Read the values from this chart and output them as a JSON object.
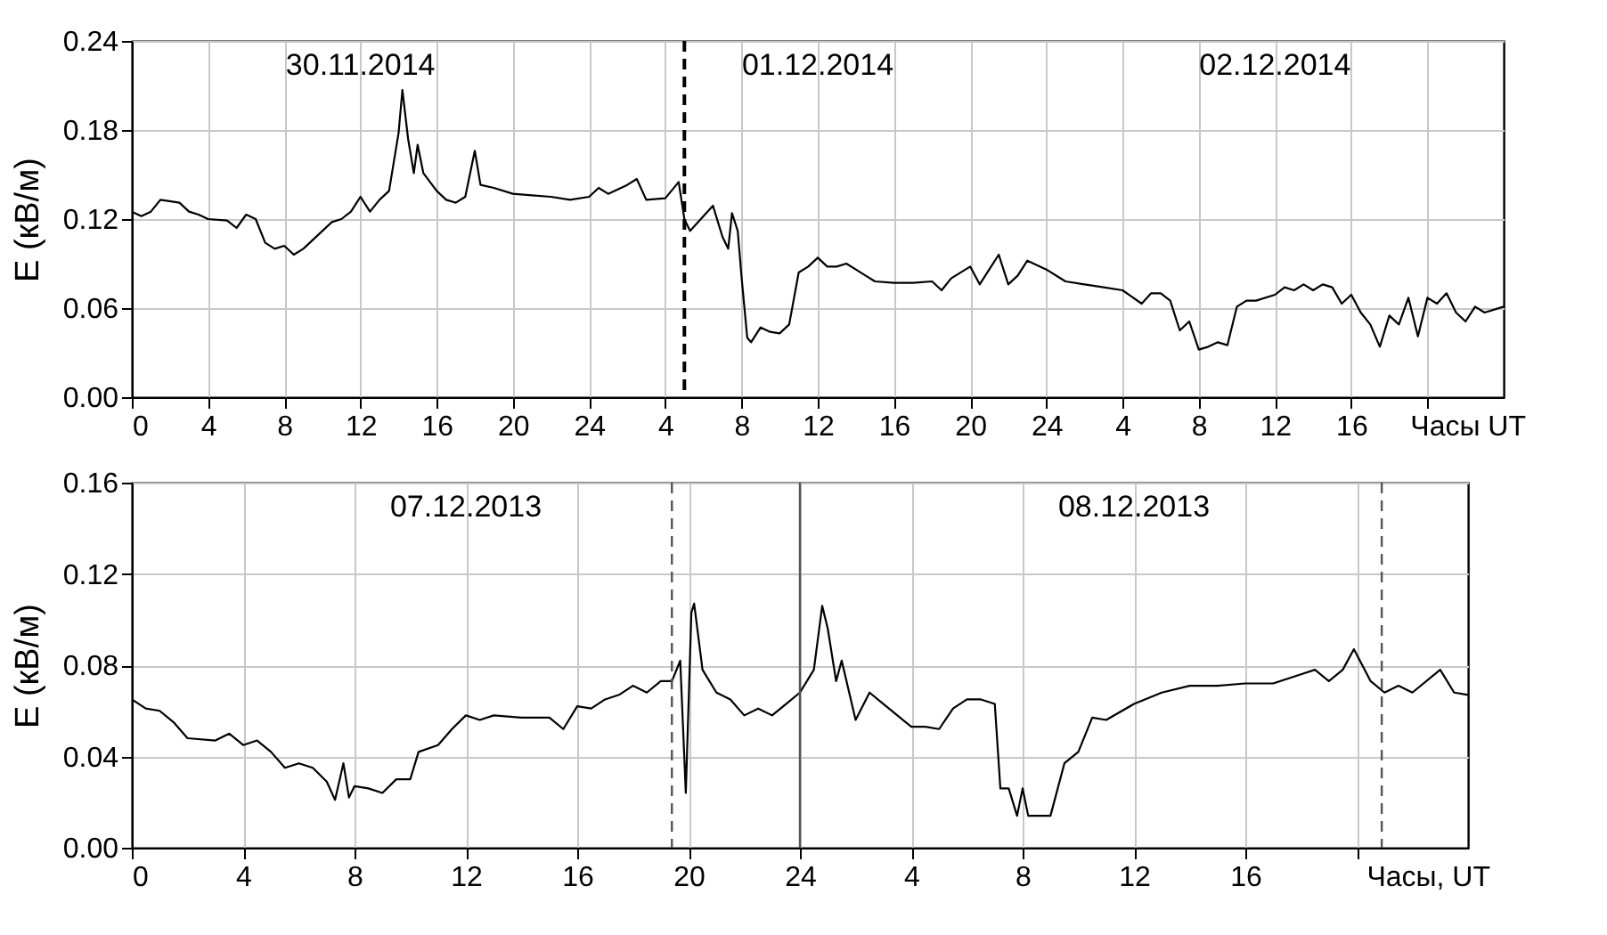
{
  "chart_data": [
    {
      "type": "line",
      "ylabel": "E (кВ/м)",
      "xlabel": "Часы UT",
      "grid": true,
      "line_style": "solid",
      "xlim": [
        "2014-11-30T00:00",
        "2014-12-03T00:00"
      ],
      "ylim": [
        0,
        0.24
      ],
      "xticks": [
        {
          "value": "2014-11-30T00:00",
          "label": "0"
        },
        {
          "value": "2014-11-30T04:00",
          "label": "4"
        },
        {
          "value": "2014-11-30T08:00",
          "label": "8"
        },
        {
          "value": "2014-11-30T12:00",
          "label": "12"
        },
        {
          "value": "2014-11-30T16:00",
          "label": "16"
        },
        {
          "value": "2014-11-30T20:00",
          "label": "20"
        },
        {
          "value": "2014-12-01T00:00",
          "label": "24"
        },
        {
          "value": "2014-12-01T04:00",
          "label": "4"
        },
        {
          "value": "2014-12-01T08:00",
          "label": "8"
        },
        {
          "value": "2014-12-01T12:00",
          "label": "12"
        },
        {
          "value": "2014-12-01T16:00",
          "label": "16"
        },
        {
          "value": "2014-12-01T20:00",
          "label": "20"
        },
        {
          "value": "2014-12-02T00:00",
          "label": "24"
        },
        {
          "value": "2014-12-02T04:00",
          "label": "4"
        },
        {
          "value": "2014-12-02T08:00",
          "label": "8"
        },
        {
          "value": "2014-12-02T12:00",
          "label": "12"
        },
        {
          "value": "2014-12-02T16:00",
          "label": "16"
        },
        {
          "value": "2014-12-02T20:00",
          "label": null
        }
      ],
      "yticks": [
        {
          "value": 0,
          "label": "0.00"
        },
        {
          "value": 0.06,
          "label": "0.06"
        },
        {
          "value": 0.12,
          "label": "0.12"
        },
        {
          "value": 0.18,
          "label": "0.18"
        },
        {
          "value": 0.24,
          "label": "0.24"
        }
      ],
      "annotations": [
        "30.11.2014",
        "01.12.2014",
        "02.12.2014"
      ],
      "ref_lines": [
        {
          "axis": "x",
          "value": "2014-12-01T05:00",
          "label": null,
          "color": "#000000",
          "line_style": "dashed"
        }
      ],
      "series": [
        {
          "color": "#000000",
          "x": [
            "2014-11-30T00:00",
            "2014-11-30T00:30",
            "2014-11-30T01:00",
            "2014-11-30T01:30",
            "2014-11-30T02:30",
            "2014-11-30T03:00",
            "2014-11-30T03:30",
            "2014-11-30T04:00",
            "2014-11-30T05:00",
            "2014-11-30T05:30",
            "2014-11-30T06:00",
            "2014-11-30T06:30",
            "2014-11-30T07:00",
            "2014-11-30T07:30",
            "2014-11-30T08:00",
            "2014-11-30T08:30",
            "2014-11-30T09:00",
            "2014-11-30T09:30",
            "2014-11-30T10:00",
            "2014-11-30T10:30",
            "2014-11-30T11:00",
            "2014-11-30T11:30",
            "2014-11-30T12:00",
            "2014-11-30T12:30",
            "2014-11-30T13:00",
            "2014-11-30T13:30",
            "2014-11-30T14:00",
            "2014-11-30T14:12",
            "2014-11-30T14:30",
            "2014-11-30T14:48",
            "2014-11-30T15:00",
            "2014-11-30T15:18",
            "2014-11-30T16:00",
            "2014-11-30T16:30",
            "2014-11-30T17:00",
            "2014-11-30T17:30",
            "2014-11-30T18:00",
            "2014-11-30T18:18",
            "2014-11-30T19:00",
            "2014-11-30T20:00",
            "2014-11-30T21:00",
            "2014-11-30T22:00",
            "2014-11-30T23:00",
            "2014-12-01T00:00",
            "2014-12-01T00:30",
            "2014-12-01T01:00",
            "2014-12-01T02:00",
            "2014-12-01T02:30",
            "2014-12-01T03:00",
            "2014-12-01T04:00",
            "2014-12-01T04:42",
            "2014-12-01T05:00",
            "2014-12-01T05:18",
            "2014-12-01T06:00",
            "2014-12-01T06:30",
            "2014-12-01T07:00",
            "2014-12-01T07:18",
            "2014-12-01T07:30",
            "2014-12-01T07:48",
            "2014-12-01T08:00",
            "2014-12-01T08:18",
            "2014-12-01T08:30",
            "2014-12-01T09:00",
            "2014-12-01T09:30",
            "2014-12-01T10:00",
            "2014-12-01T10:30",
            "2014-12-01T11:00",
            "2014-12-01T11:30",
            "2014-12-01T12:00",
            "2014-12-01T12:30",
            "2014-12-01T13:00",
            "2014-12-01T13:30",
            "2014-12-01T14:00",
            "2014-12-01T14:30",
            "2014-12-01T15:00",
            "2014-12-01T16:00",
            "2014-12-01T17:00",
            "2014-12-01T18:00",
            "2014-12-01T18:30",
            "2014-12-01T19:00",
            "2014-12-01T20:00",
            "2014-12-01T20:30",
            "2014-12-01T21:00",
            "2014-12-01T21:30",
            "2014-12-01T22:00",
            "2014-12-01T22:30",
            "2014-12-01T23:00",
            "2014-12-02T00:00",
            "2014-12-02T01:00",
            "2014-12-02T02:00",
            "2014-12-02T03:00",
            "2014-12-02T04:00",
            "2014-12-02T05:00",
            "2014-12-02T05:30",
            "2014-12-02T06:00",
            "2014-12-02T06:30",
            "2014-12-02T07:00",
            "2014-12-02T07:30",
            "2014-12-02T08:00",
            "2014-12-02T08:30",
            "2014-12-02T09:00",
            "2014-12-02T09:30",
            "2014-12-02T10:00",
            "2014-12-02T10:30",
            "2014-12-02T11:00",
            "2014-12-02T12:00",
            "2014-12-02T12:30",
            "2014-12-02T13:00",
            "2014-12-02T13:30",
            "2014-12-02T14:00",
            "2014-12-02T14:30",
            "2014-12-02T15:00",
            "2014-12-02T15:30",
            "2014-12-02T16:00",
            "2014-12-02T16:30",
            "2014-12-02T17:00",
            "2014-12-02T17:30",
            "2014-12-02T18:00",
            "2014-12-02T18:30",
            "2014-12-02T19:00",
            "2014-12-02T19:30",
            "2014-12-02T20:00",
            "2014-12-02T20:30",
            "2014-12-02T21:00",
            "2014-12-02T21:30",
            "2014-12-02T22:00",
            "2014-12-02T22:30",
            "2014-12-02T23:00",
            "2014-12-03T00:00"
          ],
          "values": [
            0.125,
            0.122,
            0.125,
            0.133,
            0.131,
            0.125,
            0.123,
            0.12,
            0.119,
            0.114,
            0.123,
            0.12,
            0.104,
            0.1,
            0.102,
            0.096,
            0.1,
            0.106,
            0.112,
            0.118,
            0.12,
            0.125,
            0.135,
            0.125,
            0.133,
            0.139,
            0.178,
            0.207,
            0.174,
            0.151,
            0.17,
            0.151,
            0.139,
            0.133,
            0.131,
            0.135,
            0.166,
            0.143,
            0.141,
            0.137,
            0.136,
            0.135,
            0.133,
            0.135,
            0.141,
            0.137,
            0.143,
            0.147,
            0.133,
            0.134,
            0.145,
            0.12,
            0.112,
            0.122,
            0.129,
            0.108,
            0.1,
            0.124,
            0.112,
            0.081,
            0.04,
            0.037,
            0.047,
            0.044,
            0.043,
            0.049,
            0.084,
            0.088,
            0.094,
            0.088,
            0.088,
            0.09,
            0.086,
            0.082,
            0.078,
            0.077,
            0.077,
            0.078,
            0.072,
            0.08,
            0.088,
            0.076,
            0.086,
            0.096,
            0.076,
            0.082,
            0.092,
            0.086,
            0.078,
            0.076,
            0.074,
            0.072,
            0.063,
            0.07,
            0.07,
            0.065,
            0.045,
            0.051,
            0.032,
            0.034,
            0.037,
            0.035,
            0.061,
            0.065,
            0.065,
            0.069,
            0.074,
            0.072,
            0.076,
            0.072,
            0.076,
            0.074,
            0.063,
            0.069,
            0.057,
            0.049,
            0.034,
            0.055,
            0.049,
            0.067,
            0.041,
            0.067,
            0.063,
            0.07,
            0.057,
            0.051,
            0.061,
            0.057,
            0.061
          ]
        }
      ]
    },
    {
      "type": "line",
      "ylabel": "E (кВ/м)",
      "xlabel": "Часы, UT",
      "grid": true,
      "line_style": "solid",
      "xlim": [
        "2013-12-07T00:00",
        "2013-12-09T00:00"
      ],
      "ylim": [
        0,
        0.16
      ],
      "xticks": [
        {
          "value": "2013-12-07T00:00",
          "label": "0"
        },
        {
          "value": "2013-12-07T04:00",
          "label": "4"
        },
        {
          "value": "2013-12-07T08:00",
          "label": "8"
        },
        {
          "value": "2013-12-07T12:00",
          "label": "12"
        },
        {
          "value": "2013-12-07T16:00",
          "label": "16"
        },
        {
          "value": "2013-12-07T20:00",
          "label": "20"
        },
        {
          "value": "2013-12-08T00:00",
          "label": "24"
        },
        {
          "value": "2013-12-08T04:00",
          "label": "4"
        },
        {
          "value": "2013-12-08T08:00",
          "label": "8"
        },
        {
          "value": "2013-12-08T12:00",
          "label": "12"
        },
        {
          "value": "2013-12-08T16:00",
          "label": "16"
        },
        {
          "value": "2013-12-08T20:00",
          "label": null
        }
      ],
      "yticks": [
        {
          "value": 0,
          "label": "0.00"
        },
        0.04,
        0.08,
        0.12,
        0.16
      ],
      "annotations": [
        "07.12.2013",
        "08.12.2013"
      ],
      "ref_lines": [
        {
          "axis": "x",
          "value": "2013-12-07T19:24",
          "label": null,
          "color": "#555555",
          "line_style": "dashed"
        },
        {
          "axis": "x",
          "value": "2013-12-08T00:00",
          "label": null,
          "color": "#555555",
          "line_style": "solid"
        },
        {
          "axis": "x",
          "value": "2013-12-08T20:54",
          "label": null,
          "color": "#555555",
          "line_style": "dashed"
        }
      ],
      "series": [
        {
          "color": "#000000",
          "x": [
            "2013-12-07T00:00",
            "2013-12-07T00:30",
            "2013-12-07T01:00",
            "2013-12-07T01:30",
            "2013-12-07T02:00",
            "2013-12-07T03:00",
            "2013-12-07T03:30",
            "2013-12-07T04:00",
            "2013-12-07T04:30",
            "2013-12-07T05:00",
            "2013-12-07T05:30",
            "2013-12-07T06:00",
            "2013-12-07T06:30",
            "2013-12-07T07:00",
            "2013-12-07T07:18",
            "2013-12-07T07:36",
            "2013-12-07T07:48",
            "2013-12-07T08:00",
            "2013-12-07T08:30",
            "2013-12-07T09:00",
            "2013-12-07T09:30",
            "2013-12-07T10:00",
            "2013-12-07T10:18",
            "2013-12-07T11:00",
            "2013-12-07T11:30",
            "2013-12-07T12:00",
            "2013-12-07T12:30",
            "2013-12-07T13:00",
            "2013-12-07T14:00",
            "2013-12-07T15:00",
            "2013-12-07T15:30",
            "2013-12-07T16:00",
            "2013-12-07T16:30",
            "2013-12-07T17:00",
            "2013-12-07T17:30",
            "2013-12-07T18:00",
            "2013-12-07T18:30",
            "2013-12-07T19:00",
            "2013-12-07T19:24",
            "2013-12-07T19:42",
            "2013-12-07T19:54",
            "2013-12-07T20:06",
            "2013-12-07T20:12",
            "2013-12-07T20:30",
            "2013-12-07T21:00",
            "2013-12-07T21:30",
            "2013-12-07T22:00",
            "2013-12-07T22:30",
            "2013-12-07T23:00",
            "2013-12-07T23:30",
            "2013-12-08T00:00",
            "2013-12-08T00:30",
            "2013-12-08T00:48",
            "2013-12-08T01:00",
            "2013-12-08T01:18",
            "2013-12-08T01:30",
            "2013-12-08T02:00",
            "2013-12-08T02:30",
            "2013-12-08T03:00",
            "2013-12-08T03:30",
            "2013-12-08T04:00",
            "2013-12-08T04:30",
            "2013-12-08T05:00",
            "2013-12-08T05:30",
            "2013-12-08T06:00",
            "2013-12-08T06:30",
            "2013-12-08T07:00",
            "2013-12-08T07:12",
            "2013-12-08T07:30",
            "2013-12-08T07:48",
            "2013-12-08T08:00",
            "2013-12-08T08:12",
            "2013-12-08T09:00",
            "2013-12-08T09:30",
            "2013-12-08T10:00",
            "2013-12-08T10:30",
            "2013-12-08T11:00",
            "2013-12-08T12:00",
            "2013-12-08T13:00",
            "2013-12-08T14:00",
            "2013-12-08T15:00",
            "2013-12-08T16:00",
            "2013-12-08T17:00",
            "2013-12-08T18:00",
            "2013-12-08T18:30",
            "2013-12-08T19:00",
            "2013-12-08T19:30",
            "2013-12-08T19:54",
            "2013-12-08T20:30",
            "2013-12-08T21:00",
            "2013-12-08T21:30",
            "2013-12-08T22:00",
            "2013-12-08T23:00",
            "2013-12-08T23:30",
            "2013-12-09T00:00"
          ],
          "values": [
            0.065,
            0.061,
            0.06,
            0.055,
            0.048,
            0.047,
            0.05,
            0.045,
            0.047,
            0.042,
            0.035,
            0.037,
            0.035,
            0.029,
            0.021,
            0.037,
            0.022,
            0.027,
            0.026,
            0.024,
            0.03,
            0.03,
            0.042,
            0.045,
            0.052,
            0.058,
            0.056,
            0.058,
            0.057,
            0.057,
            0.052,
            0.062,
            0.061,
            0.065,
            0.067,
            0.071,
            0.068,
            0.073,
            0.073,
            0.082,
            0.024,
            0.103,
            0.107,
            0.078,
            0.068,
            0.065,
            0.058,
            0.061,
            0.058,
            0.063,
            0.068,
            0.078,
            0.106,
            0.096,
            0.073,
            0.082,
            0.056,
            0.068,
            0.063,
            0.058,
            0.053,
            0.053,
            0.052,
            0.061,
            0.065,
            0.065,
            0.063,
            0.026,
            0.026,
            0.014,
            0.026,
            0.014,
            0.014,
            0.037,
            0.042,
            0.057,
            0.056,
            0.063,
            0.068,
            0.071,
            0.071,
            0.072,
            0.072,
            0.076,
            0.078,
            0.073,
            0.078,
            0.087,
            0.073,
            0.068,
            0.071,
            0.068,
            0.078,
            0.068,
            0.067
          ]
        }
      ]
    }
  ]
}
